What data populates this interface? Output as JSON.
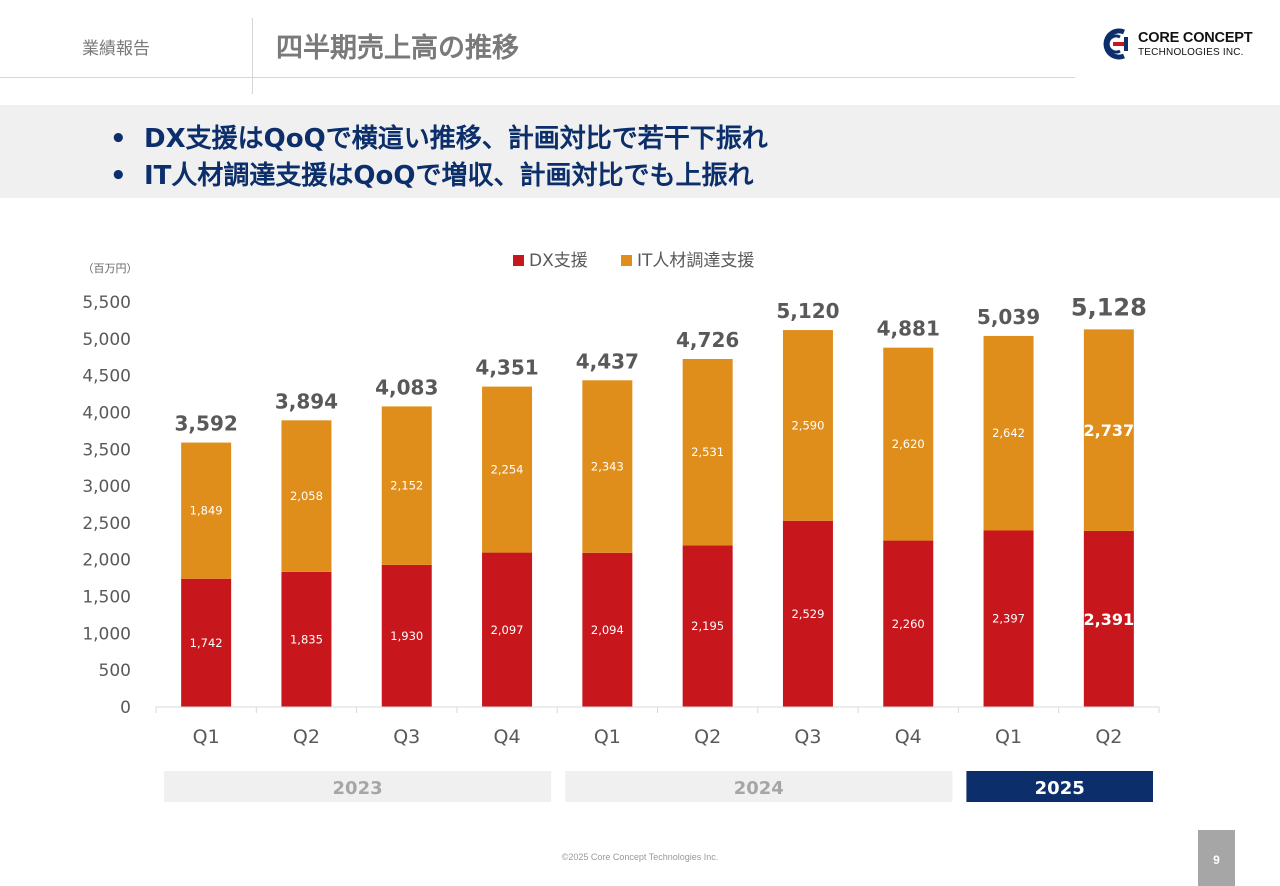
{
  "header": {
    "section_label": "業績報告",
    "title": "四半期売上高の推移",
    "logo_line1": "CORE CONCEPT",
    "logo_line2": "TECHNOLOGIES INC."
  },
  "summary": {
    "bullets": [
      "DX支援はQoQで横這い推移、計画対比で若干下振れ",
      "IT人材調達支援はQoQで増収、計画対比でも上振れ"
    ]
  },
  "chart_data": {
    "type": "bar",
    "stacked": true,
    "unit_label": "（百万円）",
    "categories": [
      "Q1",
      "Q2",
      "Q3",
      "Q4",
      "Q1",
      "Q2",
      "Q3",
      "Q4",
      "Q1",
      "Q2"
    ],
    "year_groups": [
      {
        "label": "2023",
        "quarters": 4,
        "highlight": false
      },
      {
        "label": "2024",
        "quarters": 4,
        "highlight": false
      },
      {
        "label": "2025",
        "quarters": 2,
        "highlight": true
      }
    ],
    "series": [
      {
        "name": "DX支援",
        "color": "#c8161d",
        "values": [
          1742,
          1835,
          1930,
          2097,
          2094,
          2195,
          2529,
          2260,
          2397,
          2391
        ]
      },
      {
        "name": "IT人材調達支援",
        "color": "#e08e1b",
        "values": [
          1849,
          2058,
          2152,
          2254,
          2343,
          2531,
          2590,
          2620,
          2642,
          2737
        ]
      }
    ],
    "totals": [
      3592,
      3894,
      4083,
      4351,
      4437,
      4726,
      5120,
      4881,
      5039,
      5128
    ],
    "ylim": [
      0,
      5500
    ],
    "yticks": [
      0,
      500,
      1000,
      1500,
      2000,
      2500,
      3000,
      3500,
      4000,
      4500,
      5000,
      5500
    ],
    "legend": "top-center",
    "grid": false,
    "highlight_last": true
  },
  "colors": {
    "navy": "#0c2f6b",
    "dx_red": "#c8161d",
    "it_orange": "#e08e1b",
    "year_box": "#f0f0f0",
    "year_box_active": "#0c2f6b"
  },
  "footer": {
    "copyright": "©2025 Core Concept Technologies Inc.",
    "page_number": "9"
  }
}
